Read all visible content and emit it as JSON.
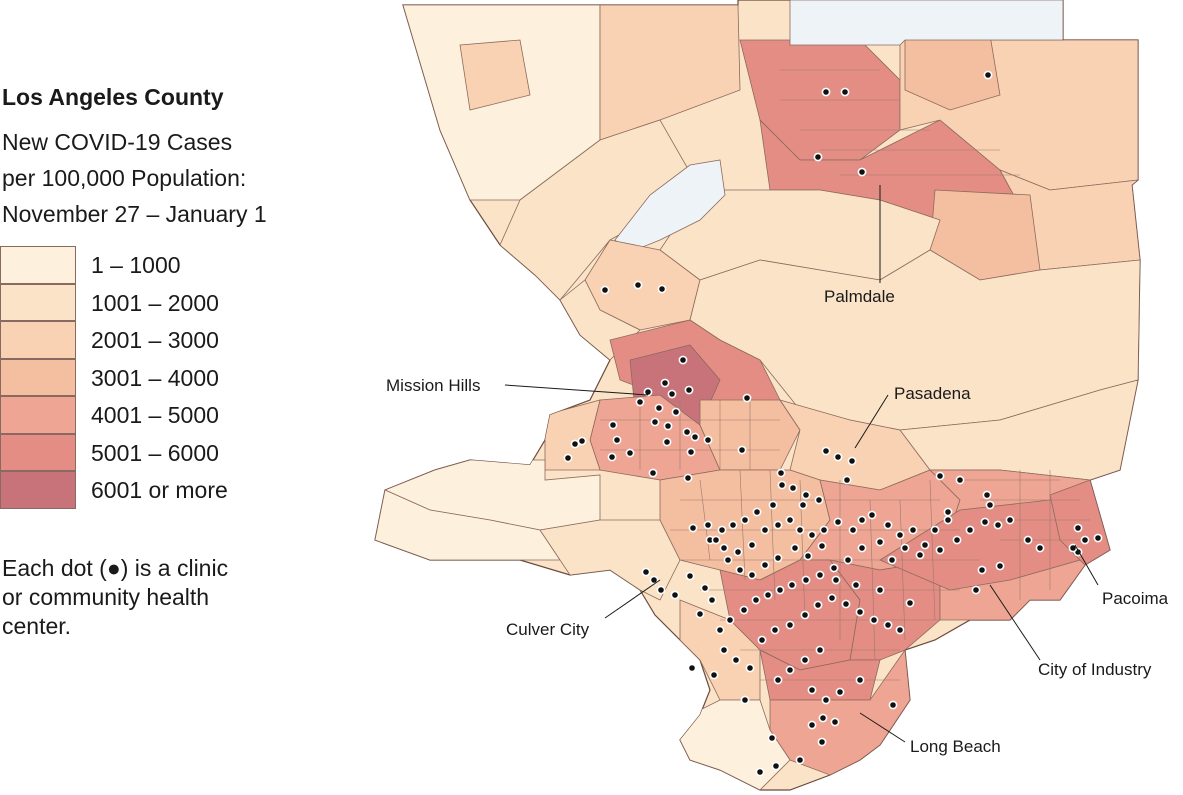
{
  "title": "Los Angeles County",
  "subtitle_lines": [
    "New COVID-19 Cases",
    "per 100,000 Population:",
    "November 27 – January 1"
  ],
  "legend": [
    {
      "label": "1 – 1000",
      "color": "#fdf0dc"
    },
    {
      "label": "1001 – 2000",
      "color": "#fbe3c8"
    },
    {
      "label": "2001 – 3000",
      "color": "#f8d2b2"
    },
    {
      "label": "3001 – 4000",
      "color": "#f4bea0"
    },
    {
      "label": "4001 – 5000",
      "color": "#efa593"
    },
    {
      "label": "5001 – 6000",
      "color": "#e48d85"
    },
    {
      "label": "6001 or more",
      "color": "#c8737a"
    }
  ],
  "note_lines": [
    "Each dot (●) is a clinic",
    "or community health",
    "center."
  ],
  "places": {
    "palmdale": "Palmdale",
    "mission_hills": "Mission Hills",
    "pasadena": "Pasadena",
    "culver_city": "Culver City",
    "pacoima": "Pacoima",
    "city_of_industry": "City of Industry",
    "long_beach": "Long Beach"
  },
  "colors": {
    "border": "#6b4a3e",
    "water": "#eef3f8",
    "dot": "#111111"
  }
}
